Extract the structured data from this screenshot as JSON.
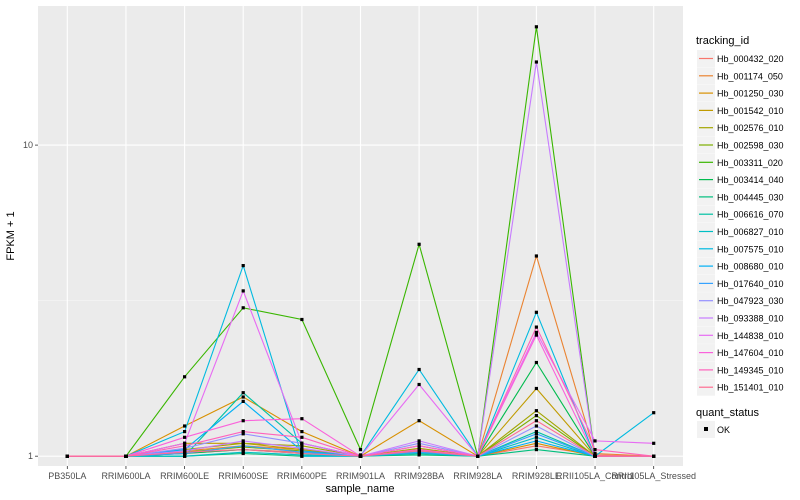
{
  "chart_data": {
    "type": "line",
    "xlabel": "sample_name",
    "ylabel": "FPKM + 1",
    "y_scale": "log10",
    "ylim": [
      0.93,
      28
    ],
    "y_ticks": [
      1,
      10
    ],
    "y_tick_labels": [
      "1",
      "10"
    ],
    "categories": [
      "PB350LA",
      "RRIM600LA",
      "RRIM600LE",
      "RRIM600SE",
      "RRIM600PE",
      "RRIM901LA",
      "RRIM928BA",
      "RRIM928LA",
      "RRIM928LE",
      "RRII105LA_Control",
      "RRII105LA_Stressed"
    ],
    "legend_title": "tracking_id",
    "shape_legend_title": "quant_status",
    "shape_legend_label": "OK",
    "series": [
      {
        "name": "Hb_000432_020",
        "color": "#F8766D",
        "values": [
          1.0,
          1.0,
          1.02,
          1.05,
          1.03,
          1.01,
          1.03,
          1.0,
          1.08,
          1.01,
          1.0
        ]
      },
      {
        "name": "Hb_001174_050",
        "color": "#EA8331",
        "values": [
          1.0,
          1.0,
          1.04,
          1.08,
          1.05,
          1.0,
          1.05,
          1.0,
          4.4,
          1.02,
          1.0
        ]
      },
      {
        "name": "Hb_001250_030",
        "color": "#D89000",
        "values": [
          1.0,
          1.0,
          1.25,
          1.55,
          1.2,
          1.0,
          1.3,
          1.0,
          1.1,
          1.0,
          1.0
        ]
      },
      {
        "name": "Hb_001542_010",
        "color": "#C09B00",
        "values": [
          1.0,
          1.0,
          1.1,
          1.1,
          1.05,
          1.0,
          1.08,
          1.0,
          1.65,
          1.0,
          1.0
        ]
      },
      {
        "name": "Hb_002576_010",
        "color": "#A3A500",
        "values": [
          1.0,
          1.0,
          1.05,
          1.1,
          1.08,
          1.0,
          1.06,
          1.0,
          1.4,
          1.0,
          1.0
        ]
      },
      {
        "name": "Hb_002598_030",
        "color": "#7CAE00",
        "values": [
          1.0,
          1.0,
          1.03,
          1.07,
          1.04,
          1.0,
          1.04,
          1.0,
          1.35,
          1.0,
          1.0
        ]
      },
      {
        "name": "Hb_003311_020",
        "color": "#39B600",
        "values": [
          1.0,
          1.0,
          1.8,
          3.0,
          2.75,
          1.05,
          4.8,
          1.0,
          24.0,
          1.0,
          1.0
        ]
      },
      {
        "name": "Hb_003414_040",
        "color": "#00BB4E",
        "values": [
          1.0,
          1.0,
          1.02,
          1.05,
          1.02,
          1.0,
          1.02,
          1.0,
          2.0,
          1.0,
          1.0
        ]
      },
      {
        "name": "Hb_004445_030",
        "color": "#00BF7D",
        "values": [
          1.0,
          1.0,
          1.0,
          1.02,
          1.0,
          1.0,
          1.01,
          1.0,
          1.05,
          1.0,
          1.0
        ]
      },
      {
        "name": "Hb_006616_070",
        "color": "#00C1A3",
        "values": [
          1.0,
          1.0,
          1.0,
          1.6,
          1.1,
          1.0,
          1.03,
          1.0,
          1.2,
          1.0,
          1.0
        ]
      },
      {
        "name": "Hb_006827_010",
        "color": "#00BFC4",
        "values": [
          1.0,
          1.0,
          1.0,
          1.03,
          1.01,
          1.0,
          1.02,
          1.0,
          1.15,
          1.0,
          1.0
        ]
      },
      {
        "name": "Hb_007575_010",
        "color": "#00BAE0",
        "values": [
          1.0,
          1.0,
          1.2,
          4.1,
          1.0,
          1.0,
          1.9,
          1.0,
          2.9,
          1.0,
          1.38
        ]
      },
      {
        "name": "Hb_008680_010",
        "color": "#00B0F6",
        "values": [
          1.0,
          1.0,
          1.05,
          1.5,
          1.04,
          1.0,
          1.04,
          1.0,
          1.12,
          1.0,
          1.0
        ]
      },
      {
        "name": "Hb_017640_010",
        "color": "#35A2FF",
        "values": [
          1.0,
          1.0,
          1.02,
          1.08,
          1.03,
          1.0,
          1.03,
          1.0,
          1.18,
          1.0,
          1.0
        ]
      },
      {
        "name": "Hb_047923_030",
        "color": "#9590FF",
        "values": [
          1.0,
          1.0,
          1.06,
          1.18,
          1.1,
          1.0,
          1.1,
          1.0,
          1.25,
          1.0,
          1.0
        ]
      },
      {
        "name": "Hb_093388_010",
        "color": "#C77CFF",
        "values": [
          1.0,
          1.0,
          1.04,
          1.12,
          1.06,
          1.0,
          1.12,
          1.0,
          18.5,
          1.0,
          1.0
        ]
      },
      {
        "name": "Hb_144838_010",
        "color": "#E76BF3",
        "values": [
          1.0,
          1.0,
          1.1,
          3.4,
          1.1,
          1.0,
          1.7,
          1.0,
          2.5,
          1.12,
          1.1
        ]
      },
      {
        "name": "Hb_147604_010",
        "color": "#FA62DB",
        "values": [
          1.0,
          1.0,
          1.15,
          1.3,
          1.32,
          1.0,
          1.08,
          1.0,
          2.45,
          1.0,
          1.0
        ]
      },
      {
        "name": "Hb_149345_010",
        "color": "#FF62BC",
        "values": [
          1.0,
          1.0,
          1.08,
          1.2,
          1.15,
          1.0,
          1.05,
          1.0,
          2.6,
          1.05,
          1.0
        ]
      },
      {
        "name": "Hb_151401_010",
        "color": "#FF6C91",
        "values": [
          1.0,
          1.0,
          1.03,
          1.05,
          1.02,
          1.0,
          1.04,
          1.0,
          1.3,
          1.0,
          1.0
        ]
      }
    ]
  }
}
